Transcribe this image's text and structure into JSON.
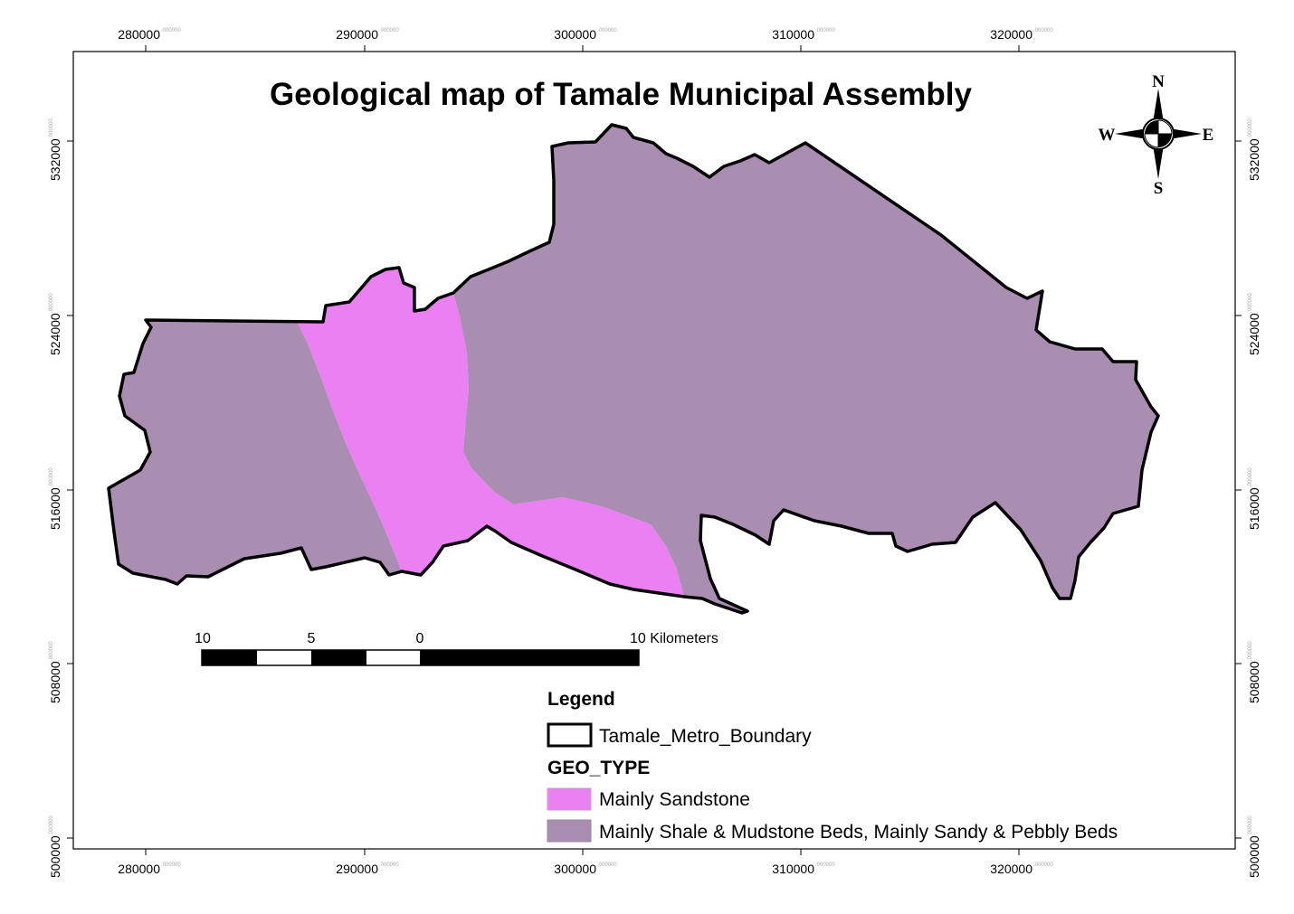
{
  "map": {
    "title": "Geological map of Tamale Municipal Assembly",
    "grid_decimals": ".000000",
    "x_ticks": [
      "280000",
      "290000",
      "300000",
      "310000",
      "320000"
    ],
    "y_ticks": [
      "532000",
      "524000",
      "516000",
      "508000",
      "500000"
    ],
    "compass": {
      "north": "N",
      "south": "S",
      "east": "E",
      "west": "W"
    },
    "scale_bar": {
      "labels": [
        "10",
        "5",
        "0",
        "10 Kilometers"
      ]
    },
    "legend": {
      "title": "Legend",
      "boundary_label": "Tamale_Metro_Boundary",
      "field_title": "GEO_TYPE",
      "items": [
        {
          "label": "Mainly Sandstone",
          "color": "#ea80f2"
        },
        {
          "label": "Mainly Shale & Mudstone Beds, Mainly Sandy & Pebbly Beds",
          "color": "#a98eb2"
        }
      ]
    },
    "colors": {
      "sandstone": "#ea80f2",
      "shale": "#a98eb2",
      "boundary": "#000000"
    }
  }
}
